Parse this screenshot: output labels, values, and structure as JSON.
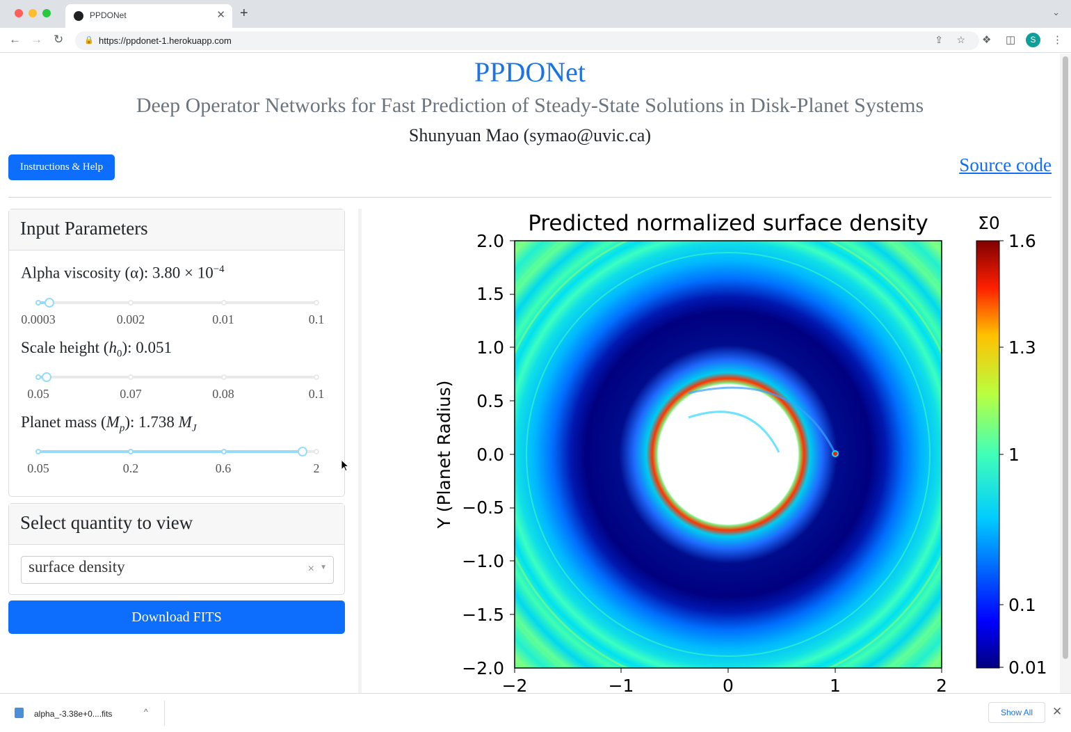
{
  "browser": {
    "tab_title": "PPDONet",
    "tab_close": "✕",
    "new_tab": "+",
    "tab_menu": "⌄",
    "url": "https://ppdonet-1.herokuapp.com",
    "profile_initial": "S",
    "icons": [
      "back-arrow-icon",
      "forward-arrow-icon",
      "reload-icon",
      "lock-icon",
      "share-icon",
      "star-icon",
      "puzzle-icon",
      "sidebar-icon",
      "kebab-menu-icon"
    ]
  },
  "header": {
    "title": "PPDONet",
    "subtitle": "Deep Operator Networks for Fast Prediction of Steady-State Solutions in Disk-Planet Systems",
    "author": "Shunyuan Mao (symao@uvic.ca)",
    "help_button": "Instructions & Help",
    "source_link": "Source code"
  },
  "params": {
    "heading": "Input Parameters",
    "alpha": {
      "label": "Alpha viscosity (α): 3.80 × 10",
      "exponent": "−4",
      "ticks": [
        "0.0003",
        "0.002",
        "0.01",
        "0.1"
      ],
      "level": 0.04
    },
    "h0": {
      "label_prefix": "Scale height (",
      "label_var": "h",
      "label_sub": "0",
      "label_suffix": "): 0.051",
      "ticks": [
        "0.05",
        "0.07",
        "0.08",
        "0.1"
      ],
      "level": 0.03
    },
    "mass": {
      "label_prefix": "Planet mass (",
      "label_var": "M",
      "label_sub": "p",
      "label_mid": "): 1.738 ",
      "label_unit": "M",
      "label_unit_sub": "J",
      "ticks": [
        "0.05",
        "0.2",
        "0.6",
        "2"
      ],
      "level": 0.95
    }
  },
  "select": {
    "heading": "Select quantity to view",
    "value": "surface density",
    "clear": "×",
    "caret": "▼"
  },
  "download_button": "Download FITS",
  "figure": {
    "title": "Predicted normalized surface density",
    "ylabel": "Y (Planet Radius)",
    "colorbar_label": "Σ0",
    "x_ticks": [
      "−2",
      "−1",
      "0",
      "1",
      "2"
    ],
    "y_ticks": [
      "2.0",
      "1.5",
      "1.0",
      "0.5",
      "0.0",
      "−0.5",
      "−1.0",
      "−1.5",
      "−2.0"
    ],
    "colorbar_ticks": [
      "1.6",
      "1.3",
      "1",
      "0.1",
      "0.01"
    ]
  },
  "chart_data": {
    "type": "heatmap",
    "title": "Predicted normalized surface density",
    "xlabel": "",
    "ylabel": "Y (Planet Radius)",
    "xlim": [
      -2,
      2
    ],
    "ylim": [
      -2,
      2
    ],
    "colorbar": {
      "label": "Σ0",
      "ticks": [
        1.6,
        1.3,
        1,
        0.1,
        0.01
      ],
      "colormap": "jet"
    },
    "planet_position": [
      1.0,
      0.0
    ]
  },
  "download_shelf": {
    "file_name": "alpha_-3.38e+0....fits",
    "chevron": "^",
    "show_all": "Show All",
    "close": "✕"
  }
}
